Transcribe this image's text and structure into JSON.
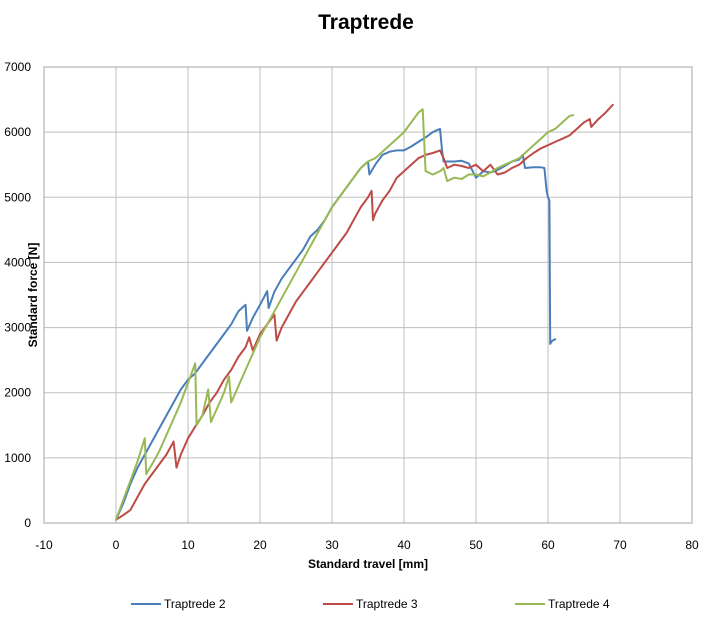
{
  "chart_data": {
    "type": "line",
    "title": "Traptrede",
    "xlabel": "Standard travel [mm]",
    "ylabel": "Standard force [N]",
    "xlim": [
      -10,
      80
    ],
    "ylim": [
      0,
      7000
    ],
    "xticks": [
      -10,
      0,
      10,
      20,
      30,
      40,
      50,
      60,
      70,
      80
    ],
    "yticks": [
      0,
      1000,
      2000,
      3000,
      4000,
      5000,
      6000,
      7000
    ],
    "grid": true,
    "legend_position": "bottom",
    "series": [
      {
        "name": "Traptrede 2",
        "color": "#4a7ebb",
        "points": [
          [
            0,
            50
          ],
          [
            1,
            300
          ],
          [
            2,
            600
          ],
          [
            3,
            850
          ],
          [
            4,
            1050
          ],
          [
            5,
            1250
          ],
          [
            6,
            1450
          ],
          [
            7,
            1650
          ],
          [
            8,
            1850
          ],
          [
            9,
            2050
          ],
          [
            10,
            2200
          ],
          [
            11,
            2300
          ],
          [
            12,
            2450
          ],
          [
            13,
            2600
          ],
          [
            14,
            2750
          ],
          [
            15,
            2900
          ],
          [
            16,
            3050
          ],
          [
            17,
            3250
          ],
          [
            18,
            3350
          ],
          [
            18.2,
            2950
          ],
          [
            19,
            3150
          ],
          [
            20,
            3350
          ],
          [
            21,
            3560
          ],
          [
            21.2,
            3300
          ],
          [
            22,
            3550
          ],
          [
            23,
            3750
          ],
          [
            24,
            3900
          ],
          [
            25,
            4050
          ],
          [
            26,
            4200
          ],
          [
            27,
            4400
          ],
          [
            28,
            4500
          ],
          [
            29,
            4650
          ],
          [
            30,
            4850
          ],
          [
            31,
            5000
          ],
          [
            32,
            5150
          ],
          [
            33,
            5300
          ],
          [
            34,
            5450
          ],
          [
            35,
            5550
          ],
          [
            35.2,
            5350
          ],
          [
            36,
            5500
          ],
          [
            37,
            5650
          ],
          [
            38,
            5700
          ],
          [
            39,
            5720
          ],
          [
            40,
            5720
          ],
          [
            41,
            5780
          ],
          [
            42,
            5850
          ],
          [
            43,
            5920
          ],
          [
            44,
            6000
          ],
          [
            45,
            6050
          ],
          [
            45.3,
            5700
          ],
          [
            45.5,
            5550
          ],
          [
            47,
            5550
          ],
          [
            48,
            5560
          ],
          [
            49,
            5520
          ],
          [
            50,
            5300
          ],
          [
            51,
            5400
          ],
          [
            52,
            5380
          ],
          [
            53,
            5420
          ],
          [
            54,
            5480
          ],
          [
            55,
            5550
          ],
          [
            56,
            5580
          ],
          [
            56.5,
            5650
          ],
          [
            56.8,
            5450
          ],
          [
            58,
            5460
          ],
          [
            59,
            5460
          ],
          [
            59.5,
            5450
          ],
          [
            59.8,
            5100
          ],
          [
            60,
            5000
          ],
          [
            60.2,
            4950
          ],
          [
            60.3,
            2750
          ],
          [
            60.6,
            2800
          ],
          [
            61,
            2820
          ]
        ]
      },
      {
        "name": "Traptrede 3",
        "color": "#be4b48",
        "points": [
          [
            0,
            50
          ],
          [
            1,
            120
          ],
          [
            2,
            200
          ],
          [
            3,
            400
          ],
          [
            4,
            600
          ],
          [
            5,
            750
          ],
          [
            6,
            900
          ],
          [
            7,
            1050
          ],
          [
            8,
            1250
          ],
          [
            8.4,
            850
          ],
          [
            9,
            1050
          ],
          [
            10,
            1300
          ],
          [
            11,
            1480
          ],
          [
            12,
            1650
          ],
          [
            13,
            1850
          ],
          [
            14,
            2000
          ],
          [
            15,
            2200
          ],
          [
            16,
            2350
          ],
          [
            17,
            2550
          ],
          [
            18,
            2700
          ],
          [
            18.5,
            2850
          ],
          [
            19,
            2650
          ],
          [
            20,
            2900
          ],
          [
            21,
            3050
          ],
          [
            22,
            3200
          ],
          [
            22.3,
            2800
          ],
          [
            23,
            3000
          ],
          [
            24,
            3200
          ],
          [
            25,
            3400
          ],
          [
            26,
            3550
          ],
          [
            27,
            3700
          ],
          [
            28,
            3850
          ],
          [
            29,
            4000
          ],
          [
            30,
            4150
          ],
          [
            31,
            4300
          ],
          [
            32,
            4450
          ],
          [
            33,
            4650
          ],
          [
            34,
            4850
          ],
          [
            35,
            5000
          ],
          [
            35.5,
            5100
          ],
          [
            35.7,
            4650
          ],
          [
            36,
            4750
          ],
          [
            37,
            4950
          ],
          [
            38,
            5100
          ],
          [
            39,
            5300
          ],
          [
            40,
            5400
          ],
          [
            41,
            5500
          ],
          [
            42,
            5600
          ],
          [
            43,
            5650
          ],
          [
            44,
            5680
          ],
          [
            45,
            5720
          ],
          [
            45.5,
            5600
          ],
          [
            46,
            5450
          ],
          [
            47,
            5500
          ],
          [
            48,
            5480
          ],
          [
            49,
            5450
          ],
          [
            50,
            5500
          ],
          [
            51,
            5400
          ],
          [
            52,
            5500
          ],
          [
            53,
            5350
          ],
          [
            54,
            5380
          ],
          [
            55,
            5450
          ],
          [
            56,
            5500
          ],
          [
            57,
            5600
          ],
          [
            58,
            5680
          ],
          [
            59,
            5750
          ],
          [
            60,
            5800
          ],
          [
            61,
            5850
          ],
          [
            62,
            5900
          ],
          [
            63,
            5950
          ],
          [
            64,
            6050
          ],
          [
            65,
            6150
          ],
          [
            65.8,
            6200
          ],
          [
            66,
            6080
          ],
          [
            67,
            6200
          ],
          [
            68,
            6300
          ],
          [
            69,
            6420
          ]
        ]
      },
      {
        "name": "Traptrede 4",
        "color": "#98b954",
        "points": [
          [
            0,
            50
          ],
          [
            1,
            350
          ],
          [
            2,
            650
          ],
          [
            3,
            950
          ],
          [
            4,
            1300
          ],
          [
            4.2,
            750
          ],
          [
            5,
            900
          ],
          [
            6,
            1100
          ],
          [
            7,
            1350
          ],
          [
            8,
            1600
          ],
          [
            9,
            1850
          ],
          [
            10,
            2150
          ],
          [
            11,
            2450
          ],
          [
            11.2,
            1500
          ],
          [
            12,
            1650
          ],
          [
            12.8,
            2050
          ],
          [
            13.2,
            1550
          ],
          [
            14,
            1750
          ],
          [
            15,
            2000
          ],
          [
            15.7,
            2250
          ],
          [
            16,
            1850
          ],
          [
            17,
            2100
          ],
          [
            18,
            2350
          ],
          [
            19,
            2600
          ],
          [
            20,
            2850
          ],
          [
            21,
            3050
          ],
          [
            22,
            3250
          ],
          [
            23,
            3450
          ],
          [
            24,
            3650
          ],
          [
            25,
            3850
          ],
          [
            26,
            4050
          ],
          [
            27,
            4250
          ],
          [
            28,
            4450
          ],
          [
            29,
            4650
          ],
          [
            30,
            4850
          ],
          [
            31,
            5000
          ],
          [
            32,
            5150
          ],
          [
            33,
            5300
          ],
          [
            34,
            5450
          ],
          [
            35,
            5550
          ],
          [
            36,
            5600
          ],
          [
            37,
            5700
          ],
          [
            38,
            5800
          ],
          [
            39,
            5900
          ],
          [
            40,
            6000
          ],
          [
            41,
            6150
          ],
          [
            42,
            6300
          ],
          [
            42.6,
            6350
          ],
          [
            43,
            5400
          ],
          [
            44,
            5350
          ],
          [
            45,
            5400
          ],
          [
            45.5,
            5450
          ],
          [
            46,
            5250
          ],
          [
            47,
            5300
          ],
          [
            48,
            5280
          ],
          [
            49,
            5350
          ],
          [
            50,
            5350
          ],
          [
            51,
            5320
          ],
          [
            52,
            5380
          ],
          [
            53,
            5450
          ],
          [
            54,
            5500
          ],
          [
            55,
            5550
          ],
          [
            56,
            5600
          ],
          [
            57,
            5700
          ],
          [
            58,
            5800
          ],
          [
            59,
            5900
          ],
          [
            60,
            6000
          ],
          [
            61,
            6050
          ],
          [
            62,
            6150
          ],
          [
            63,
            6250
          ],
          [
            63.5,
            6260
          ]
        ]
      }
    ]
  }
}
